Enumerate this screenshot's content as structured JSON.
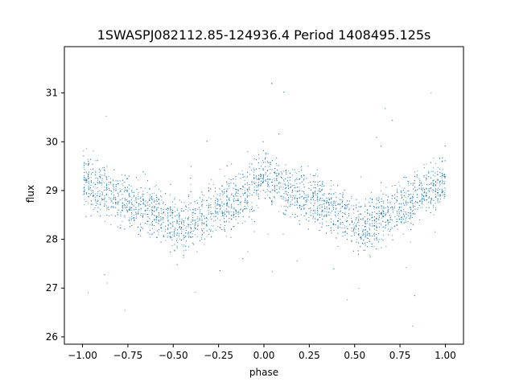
{
  "chart_data": {
    "type": "scatter",
    "title": "1SWASPJ082112.85-124936.4 Period 1408495.125s",
    "xlabel": "phase",
    "ylabel": "flux",
    "xlim": [
      -1.1,
      1.1
    ],
    "ylim": [
      25.85,
      31.95
    ],
    "x_ticks": [
      -1.0,
      -0.75,
      -0.5,
      -0.25,
      0.0,
      0.25,
      0.5,
      0.75,
      1.0
    ],
    "x_tick_labels": [
      "−1.00",
      "−0.75",
      "−0.50",
      "−0.25",
      "0.00",
      "0.25",
      "0.50",
      "0.75",
      "1.00"
    ],
    "y_ticks": [
      26,
      27,
      28,
      29,
      30,
      31
    ],
    "y_tick_labels": [
      "26",
      "27",
      "28",
      "29",
      "30",
      "31"
    ],
    "grid": false,
    "marker_color": "#1f77b4",
    "series": [
      {
        "profile": {
          "phase": [
            -1.0,
            -0.9,
            -0.8,
            -0.7,
            -0.6,
            -0.5,
            -0.45,
            -0.4,
            -0.3,
            -0.2,
            -0.1,
            0.0,
            0.1,
            0.2,
            0.3,
            0.4,
            0.5,
            0.55,
            0.6,
            0.7,
            0.8,
            0.9,
            1.0
          ],
          "flux_median": [
            29.2,
            29.0,
            28.85,
            28.7,
            28.55,
            28.35,
            28.25,
            28.35,
            28.55,
            28.75,
            28.95,
            29.3,
            29.1,
            28.9,
            28.75,
            28.55,
            28.35,
            28.25,
            28.35,
            28.55,
            28.8,
            29.0,
            29.25
          ],
          "flux_scatter": 0.55
        }
      }
    ]
  }
}
